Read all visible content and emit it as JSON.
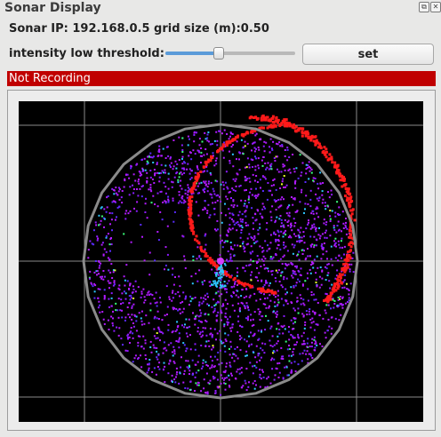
{
  "window": {
    "title": "Sonar Display",
    "buttons": [
      "restore-icon",
      "close-icon"
    ]
  },
  "info": {
    "line": "Sonar IP: 192.168.0.5 grid size (m):0.50"
  },
  "threshold": {
    "label": "intensity low threshold:",
    "slider_value": 0.41
  },
  "set_button": {
    "label": "set"
  },
  "status": {
    "text": "Not Recording",
    "color": "#c00000"
  },
  "sonar_view": {
    "background": "#000000",
    "grid_color": "#8a8a8a",
    "boundary_color": "#8a8a8a",
    "return_colors": [
      "#ff1a1a",
      "#b21bff",
      "#8c1cff",
      "#5a2bff",
      "#2ec5ff",
      "#3aff7a",
      "#e8ff2a"
    ]
  }
}
